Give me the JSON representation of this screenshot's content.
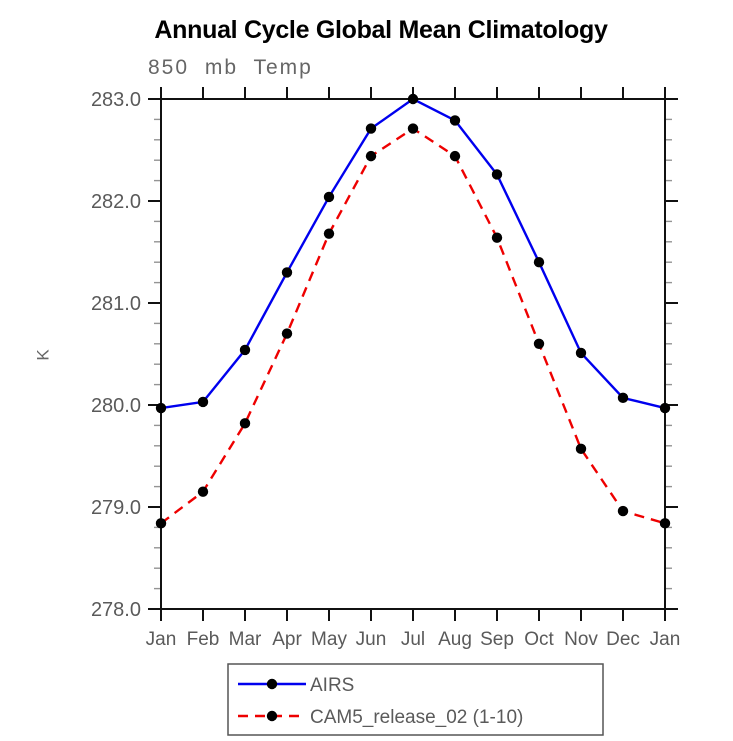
{
  "chart_data": {
    "type": "line",
    "title": "Annual Cycle Global Mean Climatology",
    "subtitle": "850 mb Temp",
    "ylabel": "K",
    "xlabel": "",
    "categories": [
      "Jan",
      "Feb",
      "Mar",
      "Apr",
      "May",
      "Jun",
      "Jul",
      "Aug",
      "Sep",
      "Oct",
      "Nov",
      "Dec",
      "Jan"
    ],
    "ylim": [
      278.0,
      283.0
    ],
    "yticks": [
      278.0,
      279.0,
      280.0,
      281.0,
      282.0,
      283.0
    ],
    "ytick_labels": [
      "278.0",
      "279.0",
      "280.0",
      "281.0",
      "282.0",
      "283.0"
    ],
    "y_minor_step": 0.2,
    "grid": false,
    "legend_position": "bottom-center",
    "series": [
      {
        "name": "AIRS",
        "color": "#0000ee",
        "line_style": "solid",
        "marker": "circle",
        "marker_color": "#000000",
        "values": [
          279.97,
          280.03,
          280.54,
          281.3,
          282.04,
          282.71,
          283.0,
          282.79,
          282.26,
          281.4,
          280.51,
          280.07,
          279.97
        ]
      },
      {
        "name": "CAM5_release_02 (1-10)",
        "color": "#ee0000",
        "line_style": "dashed",
        "marker": "circle",
        "marker_color": "#000000",
        "values": [
          278.84,
          279.15,
          279.82,
          280.7,
          281.68,
          282.44,
          282.71,
          282.44,
          281.64,
          280.6,
          279.57,
          278.96,
          278.84
        ]
      }
    ],
    "colors": {
      "title": "#000000",
      "tick_labels": "#5a5a5a",
      "axis": "#111111",
      "minor_tick": "#949494",
      "legend_border": "#555555",
      "legend_text": "#5a5a5a"
    }
  }
}
